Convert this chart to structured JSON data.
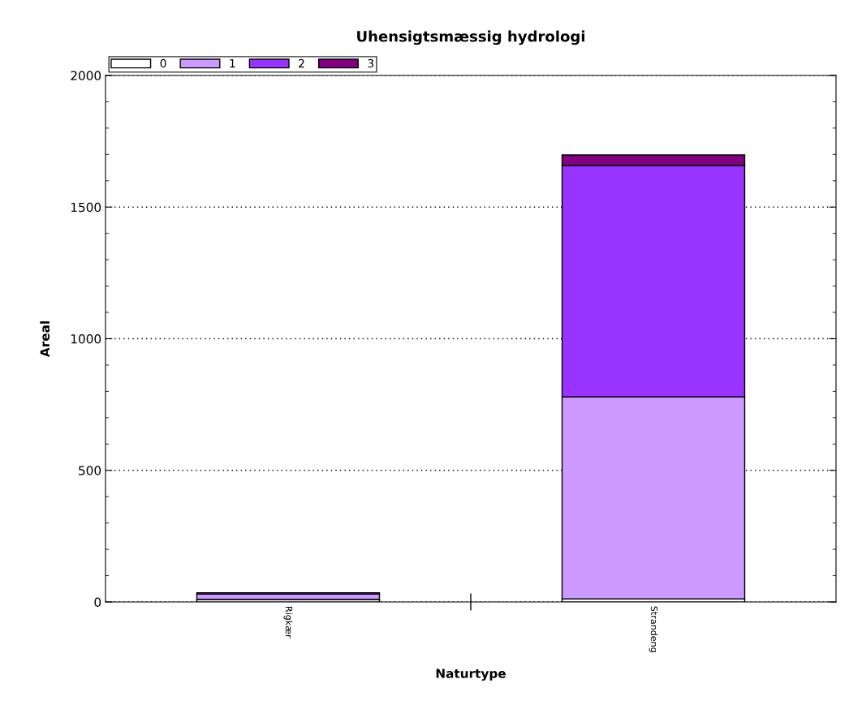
{
  "chart_data": {
    "type": "bar",
    "title": "Uhensigtsmæssig hydrologi",
    "xlabel": "Naturtype",
    "ylabel": "Areal",
    "categories": [
      "Rigkær",
      "Strandeng"
    ],
    "stacked": true,
    "series": [
      {
        "name": "0",
        "color": "#ffffff",
        "values": [
          10,
          12
        ]
      },
      {
        "name": "1",
        "color": "#cc99ff",
        "values": [
          20,
          767
        ]
      },
      {
        "name": "2",
        "color": "#9933ff",
        "values": [
          5,
          879
        ]
      },
      {
        "name": "3",
        "color": "#800080",
        "values": [
          null,
          40
        ]
      }
    ],
    "ylim": [
      0,
      2000
    ],
    "yticks": [
      0,
      500,
      1000,
      1500,
      2000
    ],
    "grid": "y",
    "legend": "top left"
  }
}
